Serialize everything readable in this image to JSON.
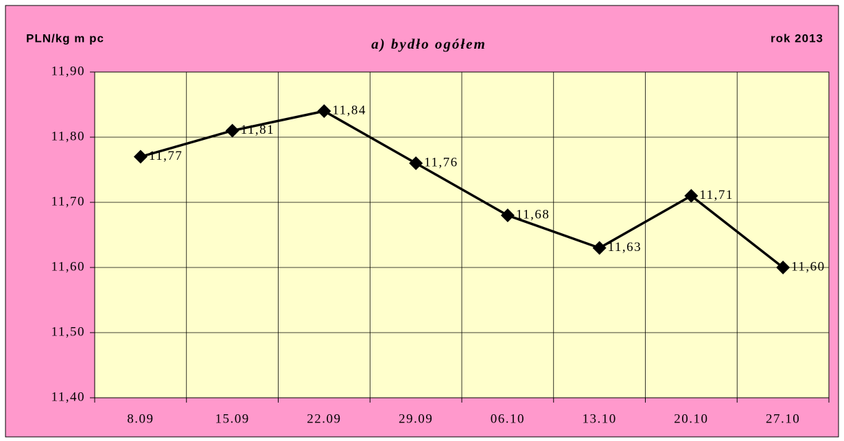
{
  "chart_data": {
    "type": "line",
    "title": "a) bydło ogółem",
    "y_label": "PLN/kg m pc",
    "annotation": "rok 2013",
    "categories": [
      "8.09",
      "15.09",
      "22.09",
      "29.09",
      "06.10",
      "13.10",
      "20.10",
      "27.10"
    ],
    "series": [
      {
        "name": "bydło ogółem",
        "color": "#000000",
        "values": [
          11.77,
          11.81,
          11.84,
          11.76,
          11.68,
          11.63,
          11.71,
          11.6
        ],
        "value_labels": [
          "11,77",
          "11,81",
          "11,84",
          "11,76",
          "11,68",
          "11,63",
          "11,71",
          "11,60"
        ]
      }
    ],
    "ylim": [
      11.4,
      11.9
    ],
    "yticks": [
      {
        "value": 11.4,
        "label": "11,40"
      },
      {
        "value": 11.5,
        "label": "11,50"
      },
      {
        "value": 11.6,
        "label": "11,60"
      },
      {
        "value": 11.7,
        "label": "11,70"
      },
      {
        "value": 11.8,
        "label": "11,80"
      },
      {
        "value": 11.9,
        "label": "11,90"
      }
    ],
    "grid": true,
    "background": "#ff99cc",
    "plot_background": "#ffffcc"
  }
}
